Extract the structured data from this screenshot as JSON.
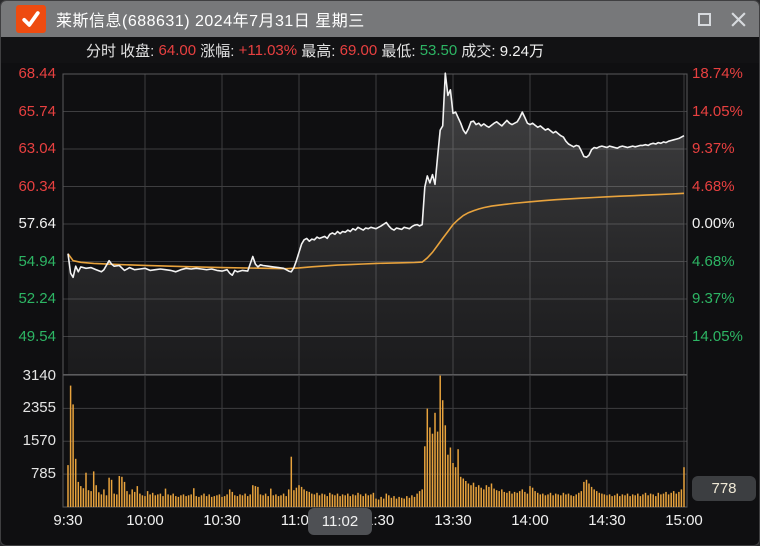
{
  "window": {
    "title": "莱斯信息(688631) 2024年7月31日 星期三",
    "logo": "check-icon",
    "buttons": {
      "maximize": "maximize",
      "close": "close"
    }
  },
  "info_bar": {
    "mode_label": "分时",
    "close_label": " 收盘: ",
    "close_value": "64.00",
    "change_label": " 涨幅: ",
    "change_value": "+11.03%",
    "high_label": " 最高: ",
    "high_value": "69.00",
    "low_label": " 最低: ",
    "low_value": "53.50",
    "turnover_label": " 成交: ",
    "turnover_value": "9.24万"
  },
  "tooltips": {
    "time_crosshair": "11:02",
    "volume_crosshair": "778"
  },
  "colors": {
    "up": "#e84040",
    "down": "#2db564",
    "flat": "#f2f2f2",
    "avg_line": "#e8a33d",
    "price_line": "#f2f2f2",
    "volume_bar": "#e8a33d",
    "grid": "#3e3e40",
    "pane_border": "#5a5a5c",
    "volume_label": "#e4e4e4"
  },
  "chart_data": {
    "type": "line",
    "title": "分时 (intraday time-share chart)",
    "prev_close": 57.64,
    "price_axis": [
      {
        "label": "68.44",
        "tone": "up"
      },
      {
        "label": "65.74",
        "tone": "up"
      },
      {
        "label": "63.04",
        "tone": "up"
      },
      {
        "label": "60.34",
        "tone": "up"
      },
      {
        "label": "57.64",
        "tone": "flat"
      },
      {
        "label": "54.94",
        "tone": "down"
      },
      {
        "label": "52.24",
        "tone": "down"
      },
      {
        "label": "49.54",
        "tone": "down"
      }
    ],
    "pct_axis": [
      {
        "label": "18.74%",
        "tone": "up"
      },
      {
        "label": "14.05%",
        "tone": "up"
      },
      {
        "label": "9.37%",
        "tone": "up"
      },
      {
        "label": "4.68%",
        "tone": "up"
      },
      {
        "label": "0.00%",
        "tone": "flat"
      },
      {
        "label": "4.68%",
        "tone": "down"
      },
      {
        "label": "9.37%",
        "tone": "down"
      },
      {
        "label": "14.05%",
        "tone": "down"
      }
    ],
    "volume_axis": [
      {
        "label": "3140",
        "value": 3140
      },
      {
        "label": "2355",
        "value": 2355
      },
      {
        "label": "1570",
        "value": 1570
      },
      {
        "label": "785",
        "value": 785
      }
    ],
    "time_axis": [
      {
        "label": "9:30",
        "m": 0
      },
      {
        "label": "10:00",
        "m": 30
      },
      {
        "label": "10:30",
        "m": 60
      },
      {
        "label": "11:00",
        "m": 90
      },
      {
        "label": "11:30",
        "m": 120
      },
      {
        "label": "13:30",
        "m": 150
      },
      {
        "label": "14:00",
        "m": 180
      },
      {
        "label": "14:30",
        "m": 210
      },
      {
        "label": "15:00",
        "m": 240
      }
    ],
    "minutes_total": 240,
    "price_points": [
      [
        0,
        55.5
      ],
      [
        1,
        54.1
      ],
      [
        2,
        53.8
      ],
      [
        3,
        54.6
      ],
      [
        4,
        54.2
      ],
      [
        5,
        54.55
      ],
      [
        7,
        54.45
      ],
      [
        9,
        54.5
      ],
      [
        11,
        54.35
      ],
      [
        13,
        54.2
      ],
      [
        14,
        54.35
      ],
      [
        16,
        55.0
      ],
      [
        17,
        54.75
      ],
      [
        18,
        54.6
      ],
      [
        20,
        54.65
      ],
      [
        22,
        54.3
      ],
      [
        24,
        54.5
      ],
      [
        26,
        54.35
      ],
      [
        28,
        54.4
      ],
      [
        30,
        54.45
      ],
      [
        32,
        54.3
      ],
      [
        34,
        54.35
      ],
      [
        36,
        54.4
      ],
      [
        38,
        54.35
      ],
      [
        40,
        54.3
      ],
      [
        42,
        54.2
      ],
      [
        44,
        54.35
      ],
      [
        46,
        54.45
      ],
      [
        48,
        54.4
      ],
      [
        50,
        54.45
      ],
      [
        52,
        54.4
      ],
      [
        54,
        54.35
      ],
      [
        56,
        54.4
      ],
      [
        58,
        54.3
      ],
      [
        60,
        54.25
      ],
      [
        62,
        54.35
      ],
      [
        63,
        54.1
      ],
      [
        64,
        53.95
      ],
      [
        65,
        54.3
      ],
      [
        66,
        54.2
      ],
      [
        68,
        54.3
      ],
      [
        70,
        54.25
      ],
      [
        72,
        55.3
      ],
      [
        73,
        54.75
      ],
      [
        74,
        54.55
      ],
      [
        75,
        54.7
      ],
      [
        76,
        54.65
      ],
      [
        78,
        54.6
      ],
      [
        80,
        54.55
      ],
      [
        82,
        54.5
      ],
      [
        84,
        54.45
      ],
      [
        85,
        54.35
      ],
      [
        86,
        54.25
      ],
      [
        87,
        54.2
      ],
      [
        88,
        54.5
      ],
      [
        89,
        55.0
      ],
      [
        90,
        55.6
      ],
      [
        91,
        56.2
      ],
      [
        92,
        56.5
      ],
      [
        93,
        56.6
      ],
      [
        94,
        56.4
      ],
      [
        95,
        56.55
      ],
      [
        96,
        56.5
      ],
      [
        97,
        56.7
      ],
      [
        98,
        56.6
      ],
      [
        100,
        56.75
      ],
      [
        101,
        56.6
      ],
      [
        102,
        56.9
      ],
      [
        103,
        57.0
      ],
      [
        104,
        56.9
      ],
      [
        105,
        57.1
      ],
      [
        106,
        56.95
      ],
      [
        107,
        57.1
      ],
      [
        108,
        57.05
      ],
      [
        109,
        57.2
      ],
      [
        110,
        57.1
      ],
      [
        111,
        57.3
      ],
      [
        112,
        57.2
      ],
      [
        113,
        57.4
      ],
      [
        114,
        57.3
      ],
      [
        115,
        57.2
      ],
      [
        116,
        57.35
      ],
      [
        117,
        57.3
      ],
      [
        118,
        57.4
      ],
      [
        119,
        57.35
      ],
      [
        120,
        57.3
      ],
      [
        122,
        57.5
      ],
      [
        124,
        57.75
      ],
      [
        125,
        57.5
      ],
      [
        126,
        57.3
      ],
      [
        127,
        57.2
      ],
      [
        128,
        57.35
      ],
      [
        129,
        57.3
      ],
      [
        130,
        57.25
      ],
      [
        131,
        57.4
      ],
      [
        132,
        57.35
      ],
      [
        133,
        57.3
      ],
      [
        134,
        57.45
      ],
      [
        135,
        57.55
      ],
      [
        136,
        57.6
      ],
      [
        137,
        57.5
      ],
      [
        138,
        57.6
      ],
      [
        139,
        60.3
      ],
      [
        140,
        61.1
      ],
      [
        141,
        60.6
      ],
      [
        142,
        61.2
      ],
      [
        143,
        60.5
      ],
      [
        144,
        62.5
      ],
      [
        145,
        64.4
      ],
      [
        146,
        64.7
      ],
      [
        147,
        68.5
      ],
      [
        148,
        66.9
      ],
      [
        149,
        67.3
      ],
      [
        150,
        65.6
      ],
      [
        151,
        65.7
      ],
      [
        152,
        65.3
      ],
      [
        153,
        64.9
      ],
      [
        154,
        64.4
      ],
      [
        155,
        64.15
      ],
      [
        156,
        64.5
      ],
      [
        157,
        65.0
      ],
      [
        158,
        65.05
      ],
      [
        159,
        64.8
      ],
      [
        160,
        64.9
      ],
      [
        161,
        64.7
      ],
      [
        162,
        64.85
      ],
      [
        163,
        64.7
      ],
      [
        164,
        64.6
      ],
      [
        165,
        64.75
      ],
      [
        166,
        64.9
      ],
      [
        167,
        65.0
      ],
      [
        168,
        64.85
      ],
      [
        169,
        64.7
      ],
      [
        170,
        64.9
      ],
      [
        171,
        65.1
      ],
      [
        172,
        64.9
      ],
      [
        173,
        64.8
      ],
      [
        174,
        64.9
      ],
      [
        175,
        65.0
      ],
      [
        176,
        65.3
      ],
      [
        177,
        65.7
      ],
      [
        178,
        65.3
      ],
      [
        179,
        64.9
      ],
      [
        180,
        64.8
      ],
      [
        181,
        64.9
      ],
      [
        182,
        64.75
      ],
      [
        183,
        64.6
      ],
      [
        184,
        64.7
      ],
      [
        185,
        64.55
      ],
      [
        186,
        64.4
      ],
      [
        187,
        64.5
      ],
      [
        188,
        64.35
      ],
      [
        189,
        64.2
      ],
      [
        190,
        64.3
      ],
      [
        191,
        64.15
      ],
      [
        192,
        64.0
      ],
      [
        193,
        63.9
      ],
      [
        194,
        63.6
      ],
      [
        195,
        63.4
      ],
      [
        196,
        63.3
      ],
      [
        197,
        63.2
      ],
      [
        198,
        63.3
      ],
      [
        199,
        63.25
      ],
      [
        200,
        62.9
      ],
      [
        201,
        62.5
      ],
      [
        202,
        62.45
      ],
      [
        203,
        62.6
      ],
      [
        204,
        63.0
      ],
      [
        205,
        63.15
      ],
      [
        206,
        63.1
      ],
      [
        207,
        63.2
      ],
      [
        208,
        63.25
      ],
      [
        209,
        63.2
      ],
      [
        210,
        63.15
      ],
      [
        211,
        63.25
      ],
      [
        212,
        63.2
      ],
      [
        213,
        63.15
      ],
      [
        214,
        63.1
      ],
      [
        215,
        63.2
      ],
      [
        216,
        63.25
      ],
      [
        217,
        63.2
      ],
      [
        218,
        63.15
      ],
      [
        219,
        63.2
      ],
      [
        220,
        63.25
      ],
      [
        221,
        63.2
      ],
      [
        222,
        63.25
      ],
      [
        223,
        63.3
      ],
      [
        224,
        63.3
      ],
      [
        225,
        63.35
      ],
      [
        226,
        63.3
      ],
      [
        227,
        63.4
      ],
      [
        228,
        63.45
      ],
      [
        229,
        63.4
      ],
      [
        230,
        63.5
      ],
      [
        231,
        63.45
      ],
      [
        232,
        63.55
      ],
      [
        233,
        63.5
      ],
      [
        234,
        63.6
      ],
      [
        235,
        63.65
      ],
      [
        236,
        63.7
      ],
      [
        237,
        63.75
      ],
      [
        238,
        63.8
      ],
      [
        239,
        63.9
      ],
      [
        240,
        64.0
      ]
    ],
    "avg_points": [
      [
        0,
        55.5
      ],
      [
        2,
        55.0
      ],
      [
        5,
        54.88
      ],
      [
        10,
        54.8
      ],
      [
        20,
        54.72
      ],
      [
        30,
        54.66
      ],
      [
        40,
        54.6
      ],
      [
        50,
        54.55
      ],
      [
        60,
        54.5
      ],
      [
        70,
        54.47
      ],
      [
        80,
        54.44
      ],
      [
        85,
        54.42
      ],
      [
        90,
        54.48
      ],
      [
        95,
        54.56
      ],
      [
        100,
        54.62
      ],
      [
        105,
        54.68
      ],
      [
        110,
        54.72
      ],
      [
        115,
        54.76
      ],
      [
        120,
        54.8
      ],
      [
        128,
        54.84
      ],
      [
        135,
        54.87
      ],
      [
        138,
        54.9
      ],
      [
        140,
        55.2
      ],
      [
        142,
        55.6
      ],
      [
        144,
        56.1
      ],
      [
        146,
        56.6
      ],
      [
        148,
        57.1
      ],
      [
        150,
        57.6
      ],
      [
        152,
        57.95
      ],
      [
        154,
        58.25
      ],
      [
        156,
        58.45
      ],
      [
        158,
        58.6
      ],
      [
        160,
        58.72
      ],
      [
        162,
        58.82
      ],
      [
        165,
        58.93
      ],
      [
        170,
        59.05
      ],
      [
        175,
        59.15
      ],
      [
        180,
        59.24
      ],
      [
        185,
        59.32
      ],
      [
        190,
        59.39
      ],
      [
        195,
        59.45
      ],
      [
        200,
        59.5
      ],
      [
        205,
        59.55
      ],
      [
        210,
        59.6
      ],
      [
        215,
        59.64
      ],
      [
        220,
        59.68
      ],
      [
        225,
        59.72
      ],
      [
        230,
        59.76
      ],
      [
        235,
        59.8
      ],
      [
        240,
        59.85
      ]
    ],
    "volume": [
      1000,
      2900,
      2450,
      1150,
      600,
      500,
      450,
      820,
      400,
      380,
      850,
      520,
      350,
      300,
      420,
      280,
      700,
      650,
      320,
      300,
      740,
      720,
      600,
      380,
      300,
      420,
      360,
      500,
      320,
      280,
      260,
      380,
      300,
      340,
      280,
      300,
      320,
      260,
      440,
      300,
      280,
      320,
      260,
      240,
      280,
      300,
      260,
      280,
      300,
      450,
      260,
      240,
      280,
      320,
      260,
      300,
      240,
      260,
      280,
      300,
      240,
      260,
      300,
      420,
      360,
      280,
      260,
      300,
      280,
      320,
      260,
      300,
      520,
      500,
      480,
      300,
      280,
      320,
      260,
      440,
      280,
      300,
      260,
      280,
      320,
      260,
      420,
      1200,
      400,
      460,
      520,
      480,
      420,
      380,
      360,
      320,
      300,
      340,
      280,
      320,
      300,
      260,
      340,
      300,
      280,
      320,
      260,
      300,
      280,
      320,
      260,
      300,
      280,
      340,
      300,
      260,
      320,
      280,
      300,
      340,
      200,
      180,
      240,
      200,
      320,
      280,
      220,
      260,
      200,
      240,
      220,
      200,
      260,
      220,
      280,
      240,
      320,
      380,
      420,
      1450,
      2350,
      1900,
      1750,
      2250,
      1800,
      3140,
      2550,
      1950,
      1250,
      1420,
      1050,
      950,
      1380,
      720,
      680,
      620,
      560,
      520,
      580,
      480,
      520,
      460,
      420,
      520,
      480,
      560,
      440,
      400,
      380,
      420,
      360,
      340,
      380,
      320,
      360,
      340,
      380,
      420,
      360,
      320,
      500,
      460,
      380,
      340,
      300,
      320,
      280,
      300,
      340,
      280,
      320,
      300,
      280,
      340,
      300,
      320,
      280,
      260,
      300,
      340,
      380,
      600,
      650,
      560,
      480,
      420,
      380,
      340,
      320,
      300,
      280,
      300,
      260,
      280,
      320,
      260,
      300,
      280,
      320,
      260,
      300,
      280,
      320,
      260,
      300,
      340,
      280,
      320,
      300,
      260,
      340,
      300,
      320,
      360,
      300,
      340,
      380,
      320,
      360,
      420,
      950
    ]
  }
}
